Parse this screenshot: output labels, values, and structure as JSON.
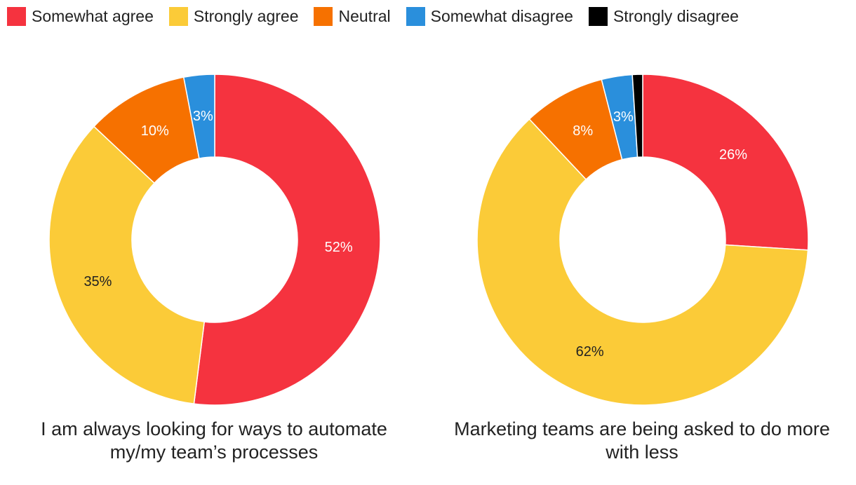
{
  "legend": [
    {
      "label": "Somewhat agree",
      "color": "#f5333f"
    },
    {
      "label": "Strongly agree",
      "color": "#fbcb38"
    },
    {
      "label": "Neutral",
      "color": "#f67100"
    },
    {
      "label": "Somewhat disagree",
      "color": "#2a8fdc"
    },
    {
      "label": "Strongly disagree",
      "color": "#000000"
    }
  ],
  "chart_data": [
    {
      "type": "pie",
      "title": "I am always looking for ways to automate my/my team’s processes",
      "donut": true,
      "categories": [
        "Somewhat agree",
        "Strongly agree",
        "Neutral",
        "Somewhat disagree"
      ],
      "values": [
        52,
        35,
        10,
        3
      ],
      "labels": [
        "52%",
        "35%",
        "10%",
        "3%"
      ],
      "colors": [
        "#f5333f",
        "#fbcb38",
        "#f67100",
        "#2a8fdc"
      ],
      "label_colors": [
        "#ffffff",
        "#222222",
        "#ffffff",
        "#ffffff"
      ]
    },
    {
      "type": "pie",
      "title": "Marketing teams are being asked to do more with less",
      "donut": true,
      "categories": [
        "Somewhat agree",
        "Strongly agree",
        "Neutral",
        "Somewhat disagree",
        "Strongly disagree"
      ],
      "values": [
        26,
        62,
        8,
        3,
        1
      ],
      "labels": [
        "26%",
        "62%",
        "8%",
        "3%",
        ""
      ],
      "colors": [
        "#f5333f",
        "#fbcb38",
        "#f67100",
        "#2a8fdc",
        "#000000"
      ],
      "label_colors": [
        "#ffffff",
        "#222222",
        "#ffffff",
        "#ffffff",
        "#ffffff"
      ]
    }
  ]
}
